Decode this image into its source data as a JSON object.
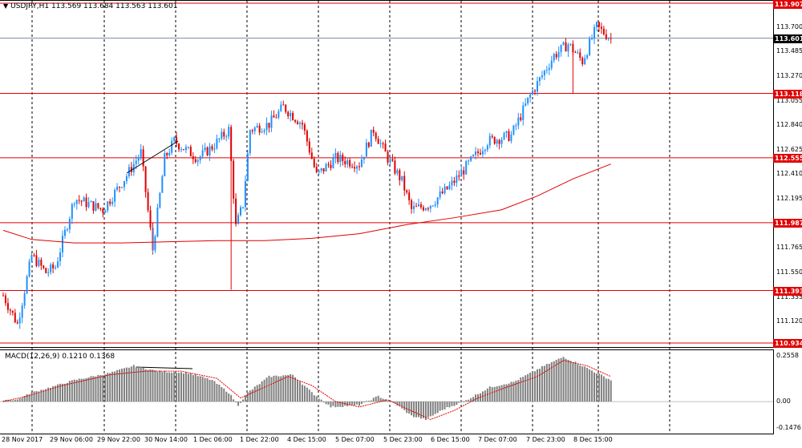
{
  "header": {
    "symbol_info": "USDJPY,H1  113.569 113.684 113.563 113.601",
    "macd_info": "MACD(12,26,9) 0.1210 0.1368"
  },
  "price_axis": {
    "ticks": [
      "113.700",
      "113.485",
      "113.270",
      "113.055",
      "112.840",
      "112.625",
      "112.410",
      "112.195",
      "111.765",
      "111.550",
      "111.335",
      "111.120"
    ]
  },
  "badges": [
    {
      "text": "113.907",
      "color": "#e00000"
    },
    {
      "text": "113.601",
      "color": "#000000"
    },
    {
      "text": "113.118",
      "color": "#e00000"
    },
    {
      "text": "112.555",
      "color": "#e00000"
    },
    {
      "text": "111.987",
      "color": "#e00000"
    },
    {
      "text": "111.393",
      "color": "#e00000"
    },
    {
      "text": "110.934",
      "color": "#e00000"
    }
  ],
  "macd_axis": {
    "ticks": [
      "0.2558",
      "0.00",
      "-0.1476"
    ]
  },
  "time_axis": {
    "labels": [
      "28 Nov 2017",
      "29 Nov 06:00",
      "29 Nov 22:00",
      "30 Nov 14:00",
      "1 Dec 06:00",
      "1 Dec 22:00",
      "4 Dec 15:00",
      "5 Dec 07:00",
      "5 Dec 23:00",
      "6 Dec 15:00",
      "7 Dec 07:00",
      "7 Dec 23:00",
      "8 Dec 15:00"
    ]
  },
  "colors": {
    "bull": "#1e90ff",
    "bear": "#e00000",
    "level": "#e00000",
    "ma": "#e00000",
    "histogram": "#808080",
    "signal": "#e00000",
    "grid": "#000000"
  },
  "chart_data": {
    "type": "candlestick",
    "symbol": "USDJPY",
    "timeframe": "H1",
    "price_levels": [
      113.907,
      113.118,
      112.555,
      111.987,
      111.393,
      110.934
    ],
    "current_price": 113.601,
    "ylim": [
      110.934,
      113.907
    ],
    "macd": {
      "main": 0.121,
      "signal": 0.1368,
      "ylim": [
        -0.1476,
        0.2558
      ]
    },
    "waypoints": [
      [
        0,
        111.35
      ],
      [
        6,
        111.1
      ],
      [
        12,
        111.7
      ],
      [
        18,
        111.55
      ],
      [
        22,
        111.6
      ],
      [
        30,
        112.2
      ],
      [
        42,
        112.1
      ],
      [
        52,
        112.4
      ],
      [
        58,
        112.6
      ],
      [
        63,
        111.75
      ],
      [
        68,
        112.55
      ],
      [
        72,
        112.7
      ],
      [
        82,
        112.55
      ],
      [
        88,
        112.65
      ],
      [
        95,
        112.8
      ],
      [
        98,
        111.95
      ],
      [
        101,
        112.15
      ],
      [
        104,
        112.8
      ],
      [
        112,
        112.85
      ],
      [
        118,
        113.0
      ],
      [
        126,
        112.85
      ],
      [
        132,
        112.4
      ],
      [
        140,
        112.55
      ],
      [
        150,
        112.5
      ],
      [
        156,
        112.8
      ],
      [
        162,
        112.55
      ],
      [
        168,
        112.35
      ],
      [
        172,
        112.1
      ],
      [
        180,
        112.15
      ],
      [
        188,
        112.3
      ],
      [
        196,
        112.5
      ],
      [
        204,
        112.7
      ],
      [
        214,
        112.75
      ],
      [
        222,
        113.1
      ],
      [
        232,
        113.45
      ],
      [
        238,
        113.55
      ],
      [
        244,
        113.4
      ],
      [
        250,
        113.7
      ],
      [
        256,
        113.6
      ]
    ],
    "ma_points": [
      [
        0,
        111.92
      ],
      [
        12,
        111.84
      ],
      [
        30,
        111.81
      ],
      [
        50,
        111.81
      ],
      [
        70,
        111.82
      ],
      [
        90,
        111.83
      ],
      [
        110,
        111.83
      ],
      [
        130,
        111.85
      ],
      [
        150,
        111.89
      ],
      [
        170,
        111.97
      ],
      [
        190,
        112.03
      ],
      [
        210,
        112.1
      ],
      [
        225,
        112.22
      ],
      [
        240,
        112.37
      ],
      [
        256,
        112.5
      ]
    ],
    "histogram_points": [
      [
        0,
        0.01
      ],
      [
        6,
        0.01
      ],
      [
        12,
        0.05
      ],
      [
        20,
        0.08
      ],
      [
        30,
        0.12
      ],
      [
        45,
        0.16
      ],
      [
        55,
        0.2
      ],
      [
        65,
        0.17
      ],
      [
        78,
        0.16
      ],
      [
        88,
        0.12
      ],
      [
        95,
        0.05
      ],
      [
        99,
        -0.02
      ],
      [
        103,
        0.05
      ],
      [
        112,
        0.14
      ],
      [
        122,
        0.15
      ],
      [
        130,
        0.05
      ],
      [
        138,
        -0.03
      ],
      [
        150,
        -0.02
      ],
      [
        158,
        0.03
      ],
      [
        165,
        -0.01
      ],
      [
        172,
        -0.08
      ],
      [
        178,
        -0.1
      ],
      [
        186,
        -0.04
      ],
      [
        194,
        0.0
      ],
      [
        205,
        0.08
      ],
      [
        215,
        0.11
      ],
      [
        228,
        0.2
      ],
      [
        236,
        0.25
      ],
      [
        244,
        0.2
      ],
      [
        256,
        0.12
      ]
    ],
    "signal_points": [
      [
        0,
        0.0
      ],
      [
        10,
        0.03
      ],
      [
        25,
        0.09
      ],
      [
        45,
        0.15
      ],
      [
        60,
        0.17
      ],
      [
        75,
        0.17
      ],
      [
        90,
        0.13
      ],
      [
        100,
        0.02
      ],
      [
        110,
        0.08
      ],
      [
        120,
        0.14
      ],
      [
        130,
        0.09
      ],
      [
        140,
        0.0
      ],
      [
        150,
        -0.03
      ],
      [
        162,
        0.01
      ],
      [
        170,
        -0.04
      ],
      [
        180,
        -0.1
      ],
      [
        190,
        -0.05
      ],
      [
        200,
        0.02
      ],
      [
        212,
        0.08
      ],
      [
        225,
        0.14
      ],
      [
        236,
        0.23
      ],
      [
        246,
        0.2
      ],
      [
        256,
        0.14
      ]
    ]
  }
}
